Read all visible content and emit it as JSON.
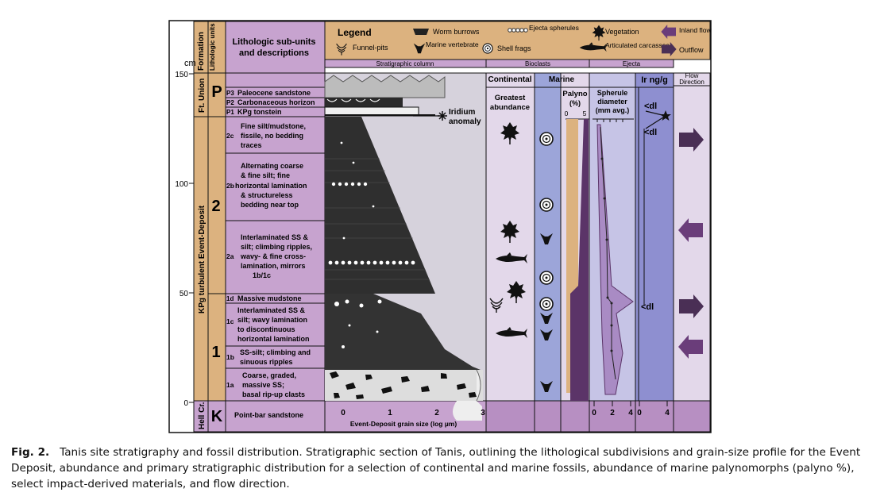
{
  "figure": {
    "legend": {
      "title": "Legend",
      "items": [
        "Worm burrows",
        "Ejecta spherules",
        "Vegetation",
        "Inland flow",
        "Funnel-pits",
        "Marine vertebrate",
        "Shell frags",
        "Articulated carcasses",
        "Outflow"
      ]
    },
    "headers": {
      "cm": "cm",
      "formation": "Formation",
      "lithologic_units": "Lithologic units",
      "sub_units": [
        "Lithologic sub-units",
        "and descriptions"
      ],
      "strat_column": "Stratigraphic column",
      "bioclasts": "Bioclasts",
      "ejecta": "Ejecta",
      "continental": "Continental",
      "marine": "Marine",
      "greatest_abundance": [
        "Greatest",
        "abundance"
      ],
      "palyno": [
        "Palyno",
        "(%)"
      ],
      "spherule": [
        "Spherule",
        "diameter",
        "(mm avg.)"
      ],
      "ir": "Ir ng/g",
      "flow": [
        "Flow",
        "Direction"
      ]
    },
    "depth_ticks": [
      "150",
      "100",
      "50",
      "0"
    ],
    "formations": [
      "Ft. Union",
      "KPg turbulent Event-Deposit",
      "Hell Cr."
    ],
    "units": [
      "P",
      "2",
      "1",
      "K"
    ],
    "subunits": [
      {
        "code": "P3",
        "lines": [
          "Paleocene sandstone"
        ]
      },
      {
        "code": "P2",
        "lines": [
          "Carbonaceous horizon"
        ]
      },
      {
        "code": "P1",
        "lines": [
          "KPg tonstein"
        ]
      },
      {
        "code": "2c",
        "lines": [
          "Fine silt/mudstone,",
          "fissile, no bedding",
          "traces"
        ]
      },
      {
        "code": "2b",
        "lines": [
          "Alternating coarse",
          "& fine silt; fine",
          "horizontal lamination",
          "& structureless",
          "bedding near top"
        ]
      },
      {
        "code": "2a",
        "lines": [
          "Interlaminated SS &",
          "silt; climbing ripples,",
          "wavy- & fine cross-",
          "lamination, mirrors",
          "1b/1c"
        ]
      },
      {
        "code": "1d",
        "lines": [
          "Massive mudstone"
        ]
      },
      {
        "code": "1c",
        "lines": [
          "Interlaminated SS &",
          "silt; wavy lamination",
          "to discontinuous",
          "horizontal lamination"
        ]
      },
      {
        "code": "1b",
        "lines": [
          "SS-silt; climbing and",
          "sinuous ripples"
        ]
      },
      {
        "code": "1a",
        "lines": [
          "Coarse, graded,",
          "massive SS;",
          "basal rip-up clasts"
        ]
      },
      {
        "code": "",
        "lines": [
          "Point-bar sandstone"
        ]
      }
    ],
    "iridium_label": [
      "Iridium",
      "anomaly"
    ],
    "grain_axis": {
      "ticks": [
        "0",
        "1",
        "2",
        "3"
      ],
      "label": "Event-Deposit grain size (log µm)"
    },
    "palyno_ticks": [
      "0",
      "5"
    ],
    "spherule_ticks": [
      "0",
      "2",
      "4"
    ],
    "ir_ticks": [
      "0",
      "4"
    ],
    "dl_labels": [
      "<dl",
      "<dl",
      "<dl"
    ],
    "colors": {
      "tan": "#dcb27f",
      "lavender": "#c7a3cf",
      "pale_lavender": "#e3d8ea",
      "blue": "#9ca5d9",
      "purple": "#6a3d7a",
      "dark": "#4a2f55",
      "grey": "#d6d2dc"
    },
    "icons": [
      "leaf-icon",
      "ammonite-icon",
      "fish-icon",
      "vertebra-icon",
      "funnel-pit-icon",
      "arrow-icon"
    ]
  },
  "caption": {
    "label": "Fig. 2.",
    "text": "Tanis site stratigraphy and fossil distribution. Stratigraphic section of Tanis, outlining the lithological subdivisions and grain-size profile for the Event Deposit, abundance and primary stratigraphic distribution for a selection of continental and marine fossils, abundance of marine palynomorphs (palyno %), select impact-derived materials, and flow direction."
  }
}
